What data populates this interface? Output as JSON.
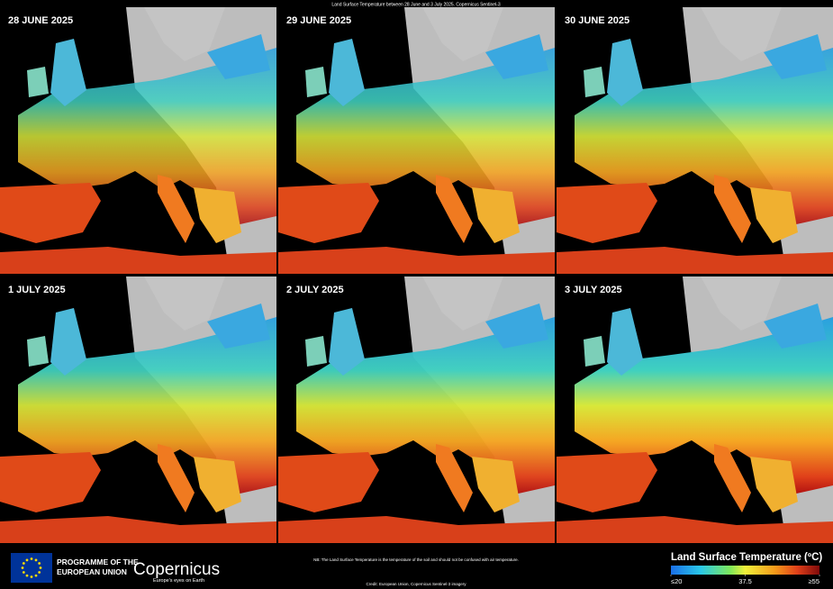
{
  "header": {
    "title": "Land Surface Temperature between 28 June and 3 July 2025. Copernicus Sentinel-3"
  },
  "panels": [
    {
      "date": "28 JUNE 2025"
    },
    {
      "date": "29 JUNE 2025"
    },
    {
      "date": "30 JUNE 2025"
    },
    {
      "date": "1 JULY 2025"
    },
    {
      "date": "2 JULY 2025"
    },
    {
      "date": "3 JULY 2025"
    }
  ],
  "footer": {
    "programme": [
      "PROGRAMME OF THE",
      "EUROPEAN UNION"
    ],
    "logo": {
      "name": "Copernicus",
      "tagline": "Europe's eyes on Earth"
    },
    "note": "NB: The Land Surface Temperature is the temperature of the soil and should not be confused with air temperature.",
    "credit": "Credit: European Union, Copernicus Sentinel-3 imagery"
  },
  "legend": {
    "title": "Land Surface Temperature (ºC)",
    "ticks": [
      {
        "value": 20,
        "label": "≤20"
      },
      37.5,
      {
        "value": 55,
        "label": "≥55"
      }
    ]
  }
}
